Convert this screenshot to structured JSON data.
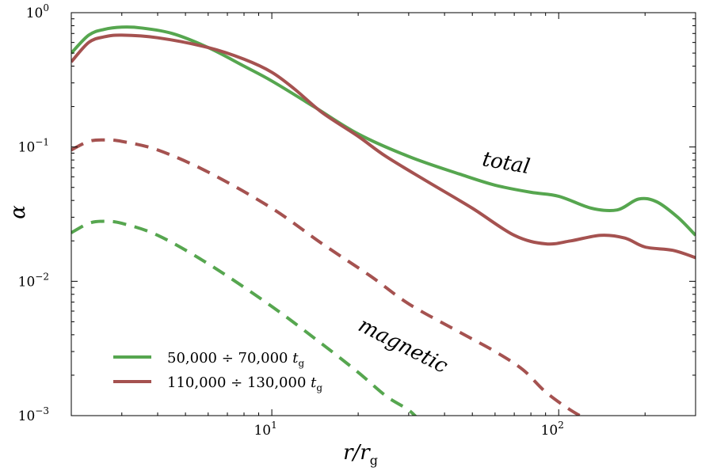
{
  "chart_data": {
    "type": "line",
    "title": "",
    "xscale": "log",
    "yscale": "log",
    "xlim": [
      2.0,
      300.0
    ],
    "ylim": [
      0.001,
      1.0
    ],
    "xlabel": {
      "main": "r/r",
      "sub": "g"
    },
    "ylabel": "α",
    "xticks": [
      {
        "value": 10,
        "base": "10",
        "exp": "1"
      },
      {
        "value": 100,
        "base": "10",
        "exp": "2"
      }
    ],
    "yticks": [
      {
        "value": 1.0,
        "base": "10",
        "exp": "0"
      },
      {
        "value": 0.1,
        "base": "10",
        "exp": "−1"
      },
      {
        "value": 0.01,
        "base": "10",
        "exp": "−2"
      },
      {
        "value": 0.001,
        "base": "10",
        "exp": "−3"
      }
    ],
    "grid": false,
    "legend_position": "lower-left",
    "legend": [
      {
        "label": "50,000 ÷ 70,000",
        "sub": "g",
        "var": "t",
        "color": "#56a64f"
      },
      {
        "label": "110,000 ÷ 130,000",
        "sub": "g",
        "var": "t",
        "color": "#a55250"
      }
    ],
    "annotations": [
      {
        "text": "total",
        "x": 65,
        "y": 0.068,
        "rotate": 10
      },
      {
        "text": "magnetic",
        "x": 28,
        "y": 0.003,
        "rotate": 27
      }
    ],
    "series": [
      {
        "name": "total 50,000 ÷ 70,000 t_g",
        "color": "#56a64f",
        "style": "solid",
        "x": [
          2.0,
          2.3,
          2.6,
          3.0,
          3.5,
          4.5,
          6.0,
          8.0,
          10.0,
          14.0,
          20.0,
          30.0,
          45.0,
          60.0,
          80.0,
          100.0,
          130.0,
          160.0,
          190.0,
          220.0,
          260.0,
          300.0
        ],
        "y": [
          0.5,
          0.68,
          0.75,
          0.78,
          0.77,
          0.7,
          0.55,
          0.4,
          0.31,
          0.2,
          0.125,
          0.085,
          0.063,
          0.052,
          0.046,
          0.043,
          0.035,
          0.034,
          0.041,
          0.039,
          0.03,
          0.022
        ]
      },
      {
        "name": "total 110,000 ÷ 130,000 t_g",
        "color": "#a55250",
        "style": "solid",
        "x": [
          2.0,
          2.3,
          2.6,
          3.0,
          4.0,
          6.0,
          8.0,
          10.0,
          12.0,
          15.0,
          20.0,
          25.0,
          35.0,
          50.0,
          70.0,
          90.0,
          110.0,
          140.0,
          170.0,
          200.0,
          250.0,
          300.0
        ],
        "y": [
          0.43,
          0.6,
          0.66,
          0.68,
          0.65,
          0.55,
          0.45,
          0.36,
          0.27,
          0.18,
          0.12,
          0.085,
          0.055,
          0.035,
          0.022,
          0.019,
          0.02,
          0.022,
          0.021,
          0.018,
          0.017,
          0.015
        ]
      },
      {
        "name": "magnetic 110,000 ÷ 130,000 t_g",
        "color": "#a55250",
        "style": "dashed",
        "x": [
          2.0,
          2.3,
          2.6,
          3.0,
          4.0,
          6.0,
          10.0,
          15.0,
          22.0,
          30.0,
          45.0,
          60.0,
          75.0,
          90.0,
          110.0,
          130.0
        ],
        "y": [
          0.095,
          0.11,
          0.113,
          0.11,
          0.095,
          0.065,
          0.035,
          0.019,
          0.011,
          0.0068,
          0.0042,
          0.003,
          0.0022,
          0.0015,
          0.0011,
          0.0009
        ]
      },
      {
        "name": "magnetic 50,000 ÷ 70,000 t_g",
        "color": "#56a64f",
        "style": "dashed",
        "x": [
          2.0,
          2.3,
          2.6,
          3.0,
          4.0,
          6.0,
          10.0,
          15.0,
          20.0,
          25.0,
          30.0,
          33.0
        ],
        "y": [
          0.023,
          0.027,
          0.028,
          0.027,
          0.022,
          0.0135,
          0.0065,
          0.0034,
          0.0021,
          0.0014,
          0.0011,
          0.0009
        ]
      }
    ]
  }
}
